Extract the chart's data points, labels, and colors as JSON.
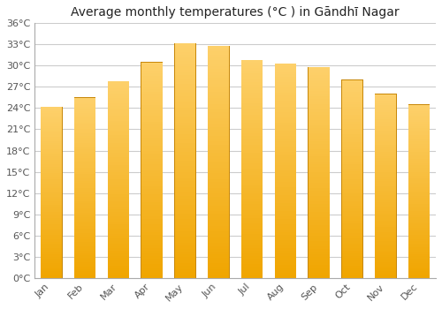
{
  "title": "Average monthly temperatures (°C ) in Gāndhī Nagar",
  "months": [
    "Jan",
    "Feb",
    "Mar",
    "Apr",
    "May",
    "Jun",
    "Jul",
    "Aug",
    "Sep",
    "Oct",
    "Nov",
    "Dec"
  ],
  "temperatures": [
    24.2,
    25.5,
    27.8,
    30.5,
    33.2,
    32.8,
    30.8,
    30.3,
    29.8,
    28.0,
    26.0,
    24.5
  ],
  "yticks": [
    0,
    3,
    6,
    9,
    12,
    15,
    18,
    21,
    24,
    27,
    30,
    33,
    36
  ],
  "ytick_labels": [
    "0°C",
    "3°C",
    "6°C",
    "9°C",
    "12°C",
    "15°C",
    "18°C",
    "21°C",
    "24°C",
    "27°C",
    "30°C",
    "33°C",
    "36°C"
  ],
  "bar_color_bottom": "#f0a500",
  "bar_color_top": "#fdd06a",
  "bar_edge_color": "#c8880a",
  "background_color": "#ffffff",
  "grid_color": "#cccccc",
  "ylim": [
    0,
    36
  ],
  "title_fontsize": 10,
  "bar_width": 0.65
}
